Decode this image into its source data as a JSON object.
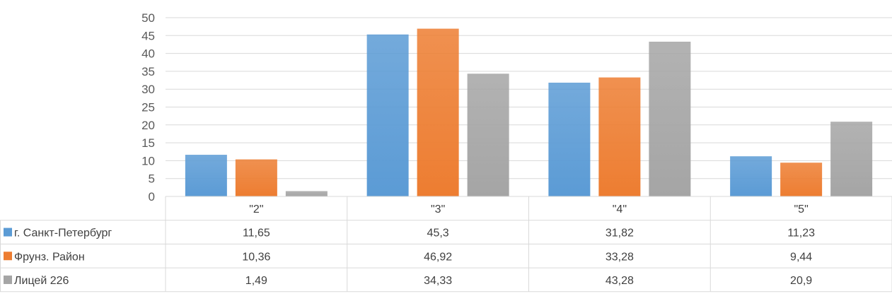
{
  "chart_data": {
    "type": "bar",
    "categories": [
      "\"2\"",
      "\"3\"",
      "\"4\"",
      "\"5\""
    ],
    "series": [
      {
        "name": "г. Санкт-Петербург",
        "color": "#5b9bd5",
        "values": [
          11.65,
          45.3,
          31.82,
          11.23
        ],
        "labels": [
          "11,65",
          "45,3",
          "31,82",
          "11,23"
        ]
      },
      {
        "name": "Фрунз. Район",
        "color": "#ed7d31",
        "values": [
          10.36,
          46.92,
          33.28,
          9.44
        ],
        "labels": [
          "10,36",
          "46,92",
          "33,28",
          "9,44"
        ]
      },
      {
        "name": "Лицей 226",
        "color": "#a5a5a5",
        "values": [
          1.49,
          34.33,
          43.28,
          20.9
        ],
        "labels": [
          "1,49",
          "34,33",
          "43,28",
          "20,9"
        ]
      }
    ],
    "ylim": [
      0,
      50
    ],
    "yticks": [
      0,
      5,
      10,
      15,
      20,
      25,
      30,
      35,
      40,
      45,
      50
    ],
    "grid": true,
    "legend": "data-table"
  }
}
